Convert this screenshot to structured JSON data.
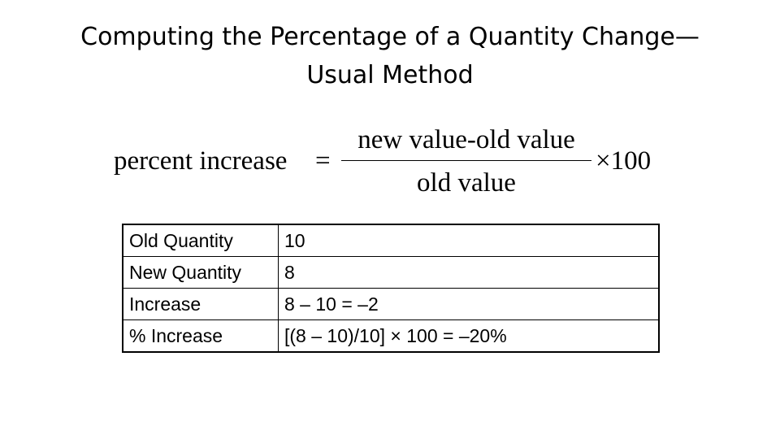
{
  "title_lines": [
    "Computing the Percentage of a Quantity Change—",
    "Usual Method"
  ],
  "formula": {
    "lhs": "percent increase",
    "equals": "=",
    "numerator": "new value-old value",
    "denominator": "old value",
    "multiplier": "×100"
  },
  "table": {
    "rows": [
      [
        "Old Quantity",
        "10"
      ],
      [
        "New Quantity",
        "8"
      ],
      [
        "Increase",
        "8 – 10 = –2"
      ],
      [
        "% Increase",
        "[(8 – 10)/10] × 100 = –20%"
      ]
    ]
  }
}
